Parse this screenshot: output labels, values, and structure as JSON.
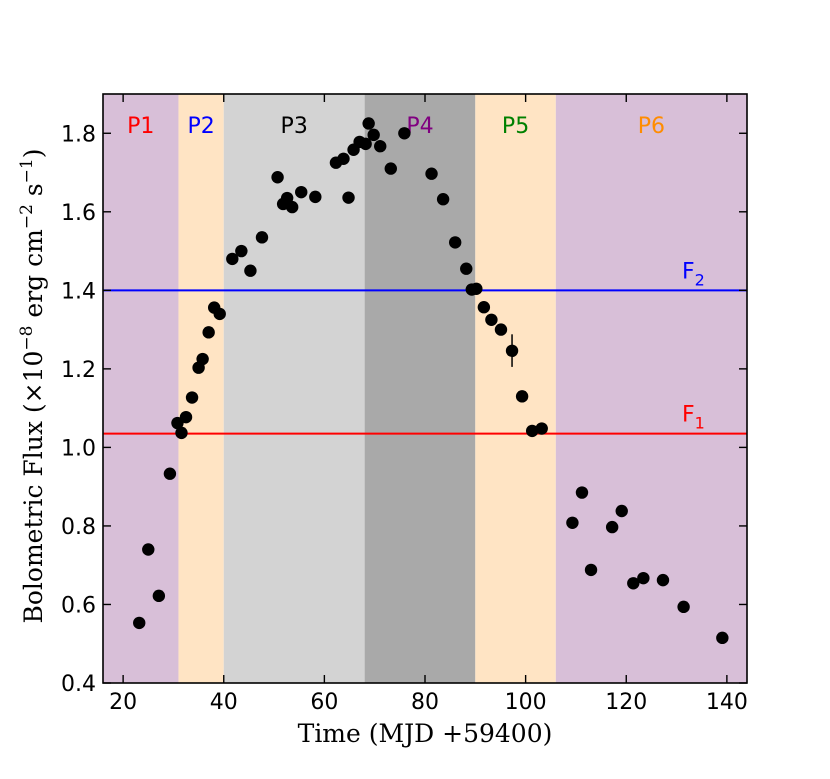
{
  "chart_data": {
    "type": "scatter",
    "xlabel": "Time (MJD +59400)",
    "ylabel": "Bolometric Flux (×10",
    "ylabel_exp1": "−8",
    "ylabel_mid": " erg cm",
    "ylabel_exp2": "−2",
    "ylabel_mid2": " s",
    "ylabel_exp3": "−1",
    "ylabel_end": ")",
    "xlim": [
      16,
      144
    ],
    "ylim": [
      0.4,
      1.9
    ],
    "x_ticks": [
      20,
      40,
      60,
      80,
      100,
      120,
      140
    ],
    "y_ticks": [
      0.4,
      0.6,
      0.8,
      1.0,
      1.2,
      1.4,
      1.6,
      1.8
    ],
    "y_tick_labels": [
      "0.4",
      "0.6",
      "0.8",
      "1.0",
      "1.2",
      "1.4",
      "1.6",
      "1.8"
    ],
    "phases": [
      {
        "label": "P1",
        "x0": 16,
        "x1": 31,
        "fill": "#d8bfd8",
        "text_color": "#ff0000"
      },
      {
        "label": "P2",
        "x0": 31,
        "x1": 40,
        "fill": "#ffe4c4",
        "text_color": "#0000ff"
      },
      {
        "label": "P3",
        "x0": 40,
        "x1": 68,
        "fill": "#d3d3d3",
        "text_color": "#000000"
      },
      {
        "label": "P4",
        "x0": 68,
        "x1": 90,
        "fill": "#a9a9a9",
        "text_color": "#800080"
      },
      {
        "label": "P5",
        "x0": 90,
        "x1": 106,
        "fill": "#ffe4c4",
        "text_color": "#008000"
      },
      {
        "label": "P6",
        "x0": 106,
        "x1": 144,
        "fill": "#d8bfd8",
        "text_color": "#ff8c00"
      }
    ],
    "hlines": [
      {
        "label": "F",
        "sub": "2",
        "y": 1.4,
        "color": "#0000ff"
      },
      {
        "label": "F",
        "sub": "1",
        "y": 1.035,
        "color": "#ff0000"
      }
    ],
    "points": [
      [
        23.2,
        0.553
      ],
      [
        25.0,
        0.74
      ],
      [
        27.1,
        0.622
      ],
      [
        29.3,
        0.933
      ],
      [
        30.8,
        1.062
      ],
      [
        31.6,
        1.037
      ],
      [
        32.5,
        1.077
      ],
      [
        33.7,
        1.127
      ],
      [
        35.0,
        1.203
      ],
      [
        35.8,
        1.225
      ],
      [
        37.0,
        1.293
      ],
      [
        38.1,
        1.356
      ],
      [
        39.2,
        1.34
      ],
      [
        41.7,
        1.48
      ],
      [
        43.5,
        1.5
      ],
      [
        45.3,
        1.45
      ],
      [
        47.6,
        1.535
      ],
      [
        50.7,
        1.688
      ],
      [
        51.8,
        1.62
      ],
      [
        52.6,
        1.635
      ],
      [
        53.6,
        1.612
      ],
      [
        55.4,
        1.65
      ],
      [
        58.2,
        1.638
      ],
      [
        62.3,
        1.725
      ],
      [
        63.8,
        1.735
      ],
      [
        64.8,
        1.636
      ],
      [
        65.8,
        1.758
      ],
      [
        67.0,
        1.778
      ],
      [
        68.2,
        1.773
      ],
      [
        68.8,
        1.825
      ],
      [
        69.8,
        1.796
      ],
      [
        71.1,
        1.767
      ],
      [
        73.2,
        1.71
      ],
      [
        75.9,
        1.8
      ],
      [
        81.3,
        1.697
      ],
      [
        83.6,
        1.632
      ],
      [
        86.0,
        1.522
      ],
      [
        88.2,
        1.455
      ],
      [
        89.3,
        1.402
      ],
      [
        90.2,
        1.404
      ],
      [
        91.7,
        1.357
      ],
      [
        93.2,
        1.325
      ],
      [
        95.1,
        1.3
      ],
      [
        97.3,
        1.246
      ],
      [
        99.3,
        1.13
      ],
      [
        101.3,
        1.042
      ],
      [
        103.2,
        1.048
      ],
      [
        109.3,
        0.808
      ],
      [
        111.2,
        0.885
      ],
      [
        113.0,
        0.688
      ],
      [
        117.2,
        0.797
      ],
      [
        119.1,
        0.838
      ],
      [
        121.4,
        0.654
      ],
      [
        123.4,
        0.667
      ],
      [
        127.3,
        0.662
      ],
      [
        131.4,
        0.594
      ],
      [
        139.1,
        0.515
      ]
    ],
    "error_bars": [
      {
        "x": 97.3,
        "y_low": 1.205,
        "y_high": 1.288
      }
    ]
  }
}
